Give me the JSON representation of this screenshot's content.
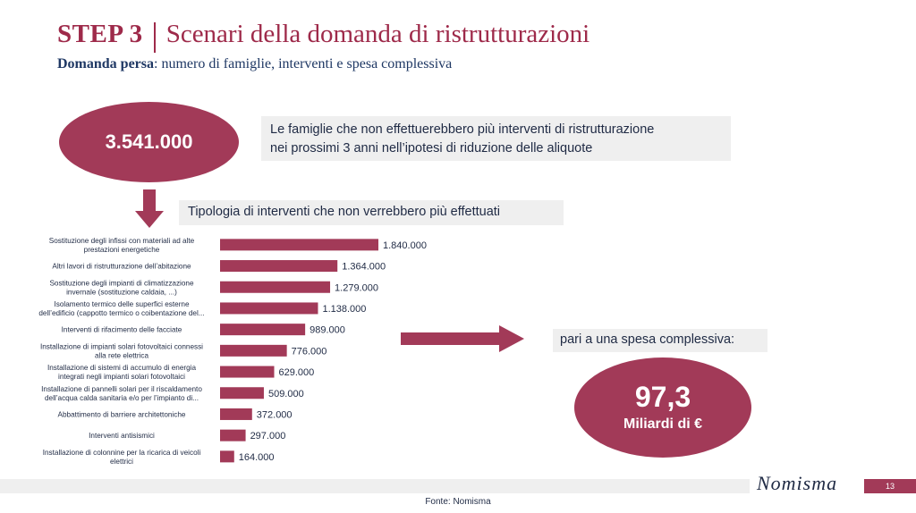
{
  "header": {
    "step": "STEP 3",
    "title": "Scenari della domanda di ristrutturazioni",
    "subtitle_bold": "Domanda persa",
    "subtitle_rest": ": numero di famiglie, interventi e spesa complessiva"
  },
  "families": {
    "value": "3.541.000",
    "description_line1": "Le famiglie che non effettuerebbero più interventi di ristrutturazione",
    "description_line2": "nei prossimi 3 anni nell’ipotesi di riduzione delle aliquote"
  },
  "types_title": "Tipologia di interventi che non verrebbero più effettuati",
  "spend": {
    "label": "pari a una spesa complessiva:",
    "value": "97,3",
    "unit": "Miliardi di €"
  },
  "chart_data": {
    "type": "bar",
    "orientation": "horizontal",
    "bar_color": "#a23a58",
    "categories": [
      [
        "Sostituzione degli infissi con materiali ad alte",
        "prestazioni energetiche"
      ],
      [
        "Altri lavori di ristrutturazione dell’abitazione"
      ],
      [
        "Sostituzione degli impianti di climatizzazione",
        "invernale (sostituzione caldaia, ...)"
      ],
      [
        "Isolamento termico delle superfici esterne",
        "dell’edificio (cappotto termico o coibentazione del..."
      ],
      [
        "Interventi di rifacimento delle facciate"
      ],
      [
        "Installazione di impianti solari fotovoltaici connessi",
        "alla rete elettrica"
      ],
      [
        "Installazione di sistemi di accumulo di energia",
        "integrati negli impianti solari fotovoltaici"
      ],
      [
        "Installazione di pannelli solari per il riscaldamento",
        "dell’acqua calda sanitaria e/o per l’impianto di..."
      ],
      [
        "Abbattimento di barriere architettoniche"
      ],
      [
        "Interventi antisismici"
      ],
      [
        "Installazione di colonnine per la ricarica di veicoli",
        "elettrici"
      ]
    ],
    "values": [
      1840000,
      1364000,
      1279000,
      1138000,
      989000,
      776000,
      629000,
      509000,
      372000,
      297000,
      164000
    ],
    "value_labels": [
      "1.840.000",
      "1.364.000",
      "1.279.000",
      "1.138.000",
      "989.000",
      "776.000",
      "629.000",
      "509.000",
      "372.000",
      "297.000",
      "164.000"
    ]
  },
  "footer": {
    "logo": "Nomisma",
    "page_number": "13",
    "source": "Fonte: Nomisma"
  }
}
